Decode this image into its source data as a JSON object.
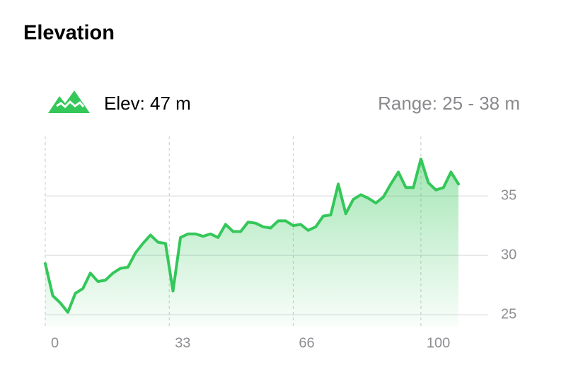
{
  "chart_data": {
    "type": "line",
    "title": "Elevation",
    "annotations": [
      "Elev: 47 m",
      "Range: 25 - 38 m"
    ],
    "x": [
      0,
      2,
      4,
      6,
      8,
      10,
      12,
      14,
      16,
      18,
      20,
      22,
      24,
      26,
      28,
      30,
      32,
      34,
      36,
      38,
      40,
      42,
      44,
      46,
      48,
      50,
      52,
      54,
      56,
      58,
      60,
      62,
      64,
      66,
      68,
      70,
      72,
      74,
      76,
      78,
      80,
      82,
      84,
      86,
      88,
      90,
      92,
      94,
      96,
      98,
      100,
      102,
      104,
      106,
      108,
      110
    ],
    "values": [
      29.3,
      26.6,
      26.0,
      25.2,
      26.8,
      27.2,
      28.5,
      27.8,
      27.9,
      28.5,
      28.9,
      29.0,
      30.2,
      31.0,
      31.7,
      31.1,
      31.0,
      27.0,
      31.5,
      31.8,
      31.8,
      31.6,
      31.8,
      31.5,
      32.6,
      32.0,
      32.0,
      32.8,
      32.7,
      32.4,
      32.3,
      32.9,
      32.9,
      32.5,
      32.6,
      32.1,
      32.4,
      33.3,
      33.4,
      36.0,
      33.5,
      34.7,
      35.1,
      34.8,
      34.4,
      34.9,
      36.0,
      37.0,
      35.7,
      35.7,
      38.1,
      36.1,
      35.5,
      35.7,
      37.0,
      36.0
    ],
    "color": "#34c759",
    "xlim": [
      0,
      110
    ],
    "xticks": [
      0,
      33,
      66,
      100
    ],
    "ylim": [
      24,
      40
    ],
    "yticks": [
      25,
      30,
      35
    ],
    "grid": true
  }
}
